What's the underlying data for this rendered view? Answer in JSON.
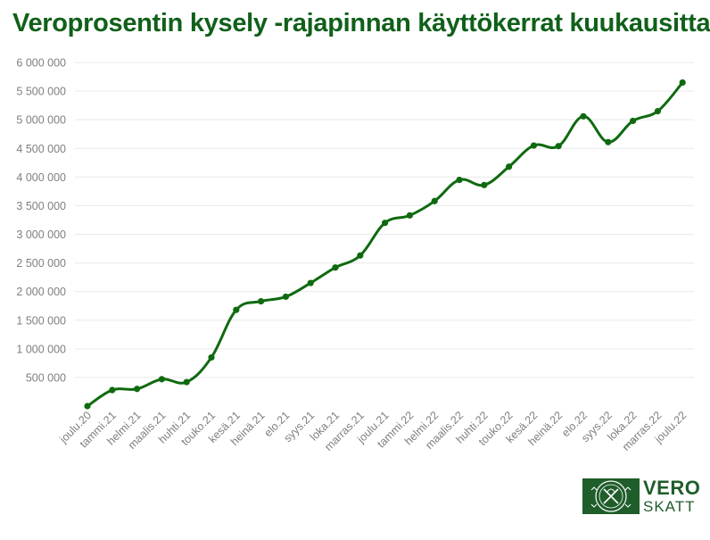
{
  "title": "Veroprosentin kysely -rajapinnan käyttökerrat kuukausittain",
  "logo": {
    "line1": "VERO",
    "line2": "SKATT",
    "color": "#1f5d2a"
  },
  "colors": {
    "title": "#10601a",
    "line": "#0f6a0f",
    "axis_text": "#7f7f7f",
    "grid": "#e9e9e9"
  },
  "chart_data": {
    "type": "line",
    "categories": [
      "joulu.20",
      "tammi.21",
      "helmi.21",
      "maalis.21",
      "huhti.21",
      "touko.21",
      "kesä.21",
      "heinä.21",
      "elo.21",
      "syys.21",
      "loka.21",
      "marras.21",
      "joulu.21",
      "tammi.22",
      "helmi.22",
      "maalis.22",
      "huhti.22",
      "touko.22",
      "kesä.22",
      "heinä.22",
      "elo.22",
      "syys.22",
      "loka.22",
      "marras.22",
      "joulu.22"
    ],
    "series": [
      {
        "values": [
          0,
          280000,
          300000,
          470000,
          420000,
          850000,
          1680000,
          1830000,
          1910000,
          2150000,
          2420000,
          2630000,
          3200000,
          3330000,
          3580000,
          3950000,
          3860000,
          4180000,
          4550000,
          4540000,
          5060000,
          4610000,
          4980000,
          5150000,
          5650000
        ]
      }
    ],
    "ylim": [
      0,
      6000000
    ],
    "yticks": [
      {
        "value": 500000,
        "label": "500 000"
      },
      {
        "value": 1000000,
        "label": "1 000 000"
      },
      {
        "value": 1500000,
        "label": "1 500 000"
      },
      {
        "value": 2000000,
        "label": "2 000 000"
      },
      {
        "value": 2500000,
        "label": "2 500 000"
      },
      {
        "value": 3000000,
        "label": "3 000 000"
      },
      {
        "value": 3500000,
        "label": "3 500 000"
      },
      {
        "value": 4000000,
        "label": "4 000 000"
      },
      {
        "value": 4500000,
        "label": "4 500 000"
      },
      {
        "value": 5000000,
        "label": "5 000 000"
      },
      {
        "value": 5500000,
        "label": "5 500 000"
      },
      {
        "value": 6000000,
        "label": "6 000 000"
      }
    ],
    "grid": true,
    "legend": "none",
    "smooth": true
  }
}
